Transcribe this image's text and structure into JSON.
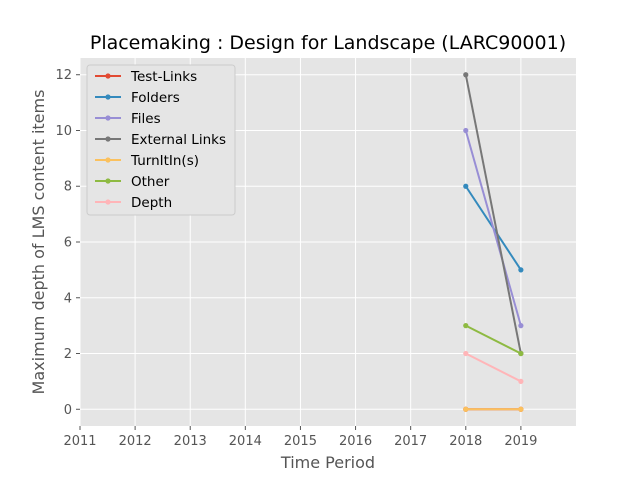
{
  "chart_data": {
    "type": "line",
    "title": "Placemaking : Design for Landscape (LARC90001)",
    "xlabel": "Time Period",
    "ylabel": "Maximum depth of LMS content items",
    "x_ticks": [
      "2011",
      "2012",
      "2013",
      "2014",
      "2015",
      "2016",
      "2017",
      "2018",
      "2019"
    ],
    "y_ticks": [
      "0",
      "2",
      "4",
      "6",
      "8",
      "10",
      "12"
    ],
    "xlim": [
      2011,
      2020
    ],
    "ylim": [
      -0.6,
      12.6
    ],
    "grid": true,
    "legend_position": "top-left",
    "x": [
      2018,
      2019
    ],
    "series": [
      {
        "name": "Test-Links",
        "color": "#E24A33",
        "values": [
          0,
          0
        ]
      },
      {
        "name": "Folders",
        "color": "#348ABD",
        "values": [
          8,
          5
        ]
      },
      {
        "name": "Files",
        "color": "#988ED5",
        "values": [
          10,
          3
        ]
      },
      {
        "name": "External Links",
        "color": "#777777",
        "values": [
          12,
          2
        ]
      },
      {
        "name": "TurnItIn(s)",
        "color": "#FBC15E",
        "values": [
          0,
          0
        ]
      },
      {
        "name": "Other",
        "color": "#8EBA42",
        "values": [
          3,
          2
        ]
      },
      {
        "name": "Depth",
        "color": "#FFB5B8",
        "values": [
          2,
          1
        ]
      }
    ]
  }
}
